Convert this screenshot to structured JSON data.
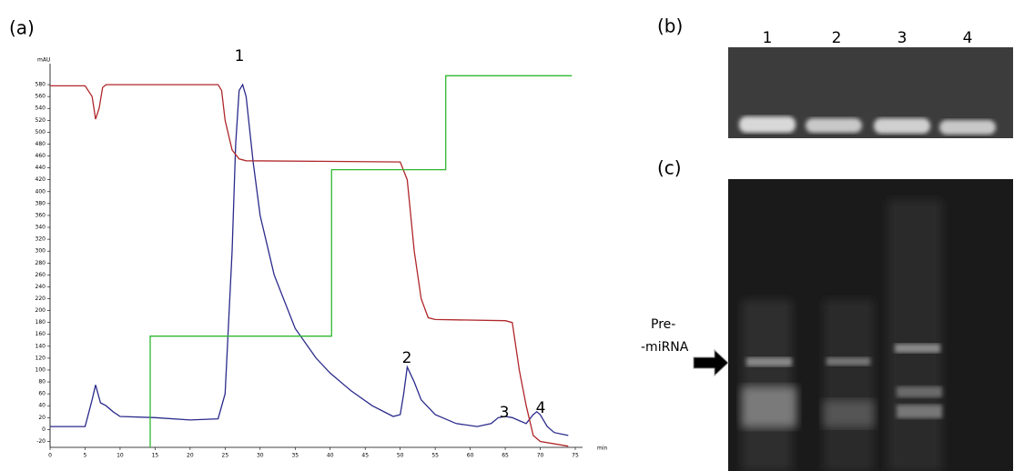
{
  "panel_labels": {
    "a": "(a)",
    "b": "(b)",
    "c": "(c)"
  },
  "chart_data": {
    "type": "line",
    "ylabel": "mAU",
    "xlabel": "min",
    "xlim": [
      0,
      75
    ],
    "xticks": [
      0,
      5,
      10,
      15,
      20,
      25,
      30,
      35,
      40,
      45,
      50,
      55,
      60,
      65,
      70,
      75
    ],
    "ylim": [
      -30,
      600
    ],
    "yticks": [
      -20,
      0,
      20,
      40,
      60,
      80,
      100,
      120,
      140,
      160,
      180,
      200,
      220,
      240,
      260,
      280,
      300,
      320,
      340,
      360,
      380,
      400,
      420,
      440,
      460,
      480,
      500,
      520,
      540,
      560,
      580
    ],
    "annotations": [
      "1",
      "2",
      "3",
      "4"
    ],
    "series": [
      {
        "color": "#2b2a8c",
        "x": [
          0,
          5,
          6,
          6.5,
          7.2,
          8,
          9,
          10,
          15,
          20,
          24,
          25,
          26,
          26.5,
          27,
          27.5,
          28,
          29,
          30,
          32,
          35,
          38,
          40,
          43,
          46,
          49,
          50,
          50.5,
          51,
          52,
          53,
          55,
          58,
          61,
          63,
          64,
          65,
          66,
          67,
          68,
          69,
          69.5,
          70,
          71,
          72,
          74
        ],
        "values": [
          5,
          5,
          50,
          75,
          45,
          40,
          30,
          22,
          20,
          16,
          18,
          60,
          300,
          480,
          570,
          580,
          560,
          450,
          360,
          260,
          170,
          120,
          95,
          65,
          40,
          22,
          25,
          60,
          105,
          80,
          50,
          25,
          10,
          5,
          10,
          20,
          22,
          20,
          15,
          10,
          25,
          30,
          25,
          5,
          -5,
          -10
        ]
      },
      {
        "color": "#b0262a",
        "x": [
          0,
          5,
          6,
          6.5,
          7,
          7.5,
          8,
          24,
          24.5,
          25,
          26,
          27,
          28,
          50,
          51,
          52,
          53,
          54,
          55,
          65,
          66,
          67,
          68,
          69,
          70,
          74
        ],
        "values": [
          578,
          578,
          560,
          522,
          540,
          575,
          580,
          580,
          570,
          520,
          470,
          455,
          452,
          450,
          420,
          300,
          220,
          188,
          185,
          183,
          180,
          100,
          40,
          -10,
          -20,
          -28
        ]
      },
      {
        "color": "#2fb82f",
        "x": [
          14.3,
          14.3,
          40.2,
          40.2,
          56.5,
          56.5,
          74.5
        ],
        "values": [
          -30,
          157,
          157,
          437,
          437,
          595,
          595
        ]
      }
    ]
  },
  "gel_b": {
    "lanes": [
      "1",
      "2",
      "3",
      "4"
    ]
  },
  "gel_c": {
    "arrow_label": [
      "Pre-",
      "-miRNA"
    ]
  }
}
